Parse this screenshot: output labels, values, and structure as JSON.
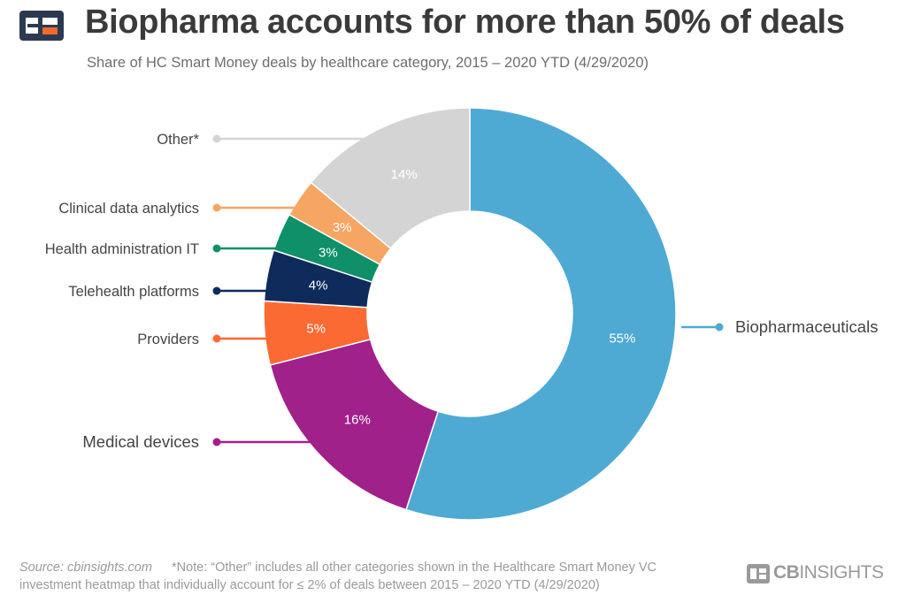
{
  "header": {
    "title": "Biopharma accounts for more than 50% of deals",
    "subtitle": "Share of HC Smart Money deals by healthcare category, 2015 – 2020 YTD (4/29/2020)"
  },
  "footer": {
    "source": "Source: cbinsights.com",
    "note_line1": "*Note: “Other” includes all other categories shown in the Healthcare Smart Money VC",
    "note_line2": "investment heatmap that individually account for ≤ 2% of deals between 2015 – 2020 YTD (4/29/2020)",
    "brand_cb": "CB",
    "brand_insights": "INSIGHTS"
  },
  "chart_data": {
    "type": "pie",
    "variant": "donut",
    "title": "Biopharma accounts for more than 50% of deals",
    "subtitle": "Share of HC Smart Money deals by healthcare category, 2015 – 2020 YTD (4/29/2020)",
    "slices": [
      {
        "label": "Biopharmaceuticals",
        "value": 55,
        "value_label": "55%",
        "color": "#4eaad3"
      },
      {
        "label": "Medical devices",
        "value": 16,
        "value_label": "16%",
        "color": "#a0218a"
      },
      {
        "label": "Providers",
        "value": 5,
        "value_label": "5%",
        "color": "#fc6a34"
      },
      {
        "label": "Telehealth platforms",
        "value": 4,
        "value_label": "4%",
        "color": "#0e2b5c"
      },
      {
        "label": "Health administration IT",
        "value": 3,
        "value_label": "3%",
        "color": "#0f9068"
      },
      {
        "label": "Clinical data analytics",
        "value": 3,
        "value_label": "3%",
        "color": "#f7a563"
      },
      {
        "label": "Other*",
        "value": 14,
        "value_label": "14%",
        "color": "#d4d4d4"
      }
    ]
  },
  "colors": {
    "title": "#3a3a3a",
    "subtitle": "#6e6e6e",
    "footer": "#9a9a9a",
    "logo_dark": "#2b3a50",
    "logo_orange": "#f26a2e"
  }
}
